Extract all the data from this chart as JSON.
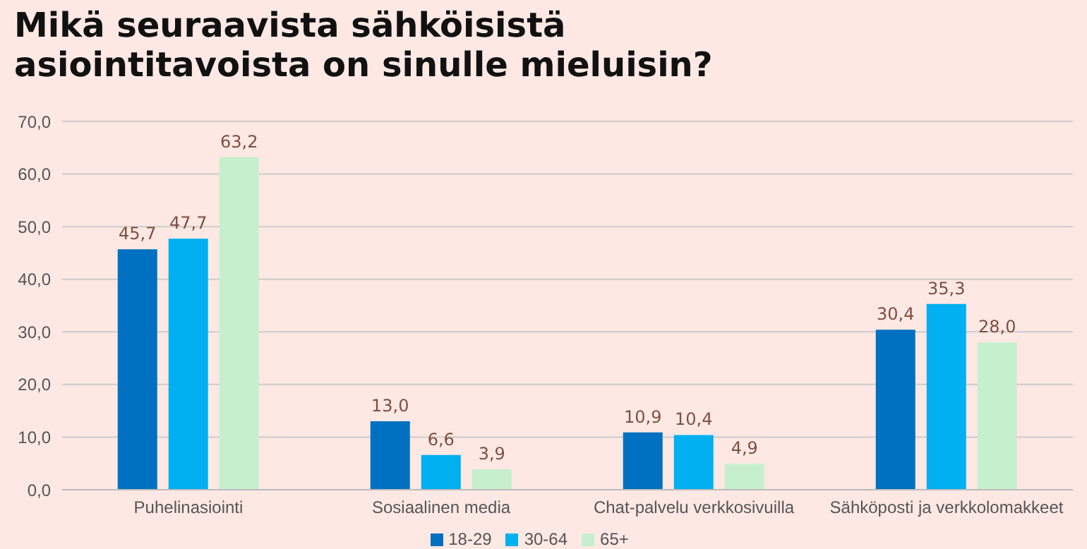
{
  "chart_data": {
    "type": "bar",
    "title": "Mikä seuraavista sähköisistä asiointitavoista on sinulle mieluisin?",
    "categories": [
      "Puhelinasiointi",
      "Sosiaalinen media",
      "Chat-palvelu verkkosivuilla",
      "Sähköposti ja verkkolomakkeet"
    ],
    "series": [
      {
        "name": "18-29",
        "color": "#0070c0",
        "values": [
          45.7,
          13.0,
          10.9,
          30.4
        ],
        "value_labels": [
          "45,7",
          "13,0",
          "10,9",
          "30,4"
        ]
      },
      {
        "name": "30-64",
        "color": "#00b0f0",
        "values": [
          47.7,
          6.6,
          10.4,
          35.3
        ],
        "value_labels": [
          "47,7",
          "6,6",
          "10,4",
          "35,3"
        ]
      },
      {
        "name": "65+",
        "color": "#c6efce",
        "values": [
          63.2,
          3.9,
          4.9,
          28.0
        ],
        "value_labels": [
          "63,2",
          "3,9",
          "4,9",
          "28,0"
        ]
      }
    ],
    "ylim": [
      0,
      70
    ],
    "yticks": [
      {
        "value": 0,
        "label": "0,0"
      },
      {
        "value": 10,
        "label": "10,0"
      },
      {
        "value": 20,
        "label": "20,0"
      },
      {
        "value": 30,
        "label": "30,0"
      },
      {
        "value": 40,
        "label": "40,0"
      },
      {
        "value": 50,
        "label": "50,0"
      },
      {
        "value": 60,
        "label": "60,0"
      },
      {
        "value": 70,
        "label": "70,0"
      }
    ],
    "grid": "y",
    "legend": "bottom"
  }
}
